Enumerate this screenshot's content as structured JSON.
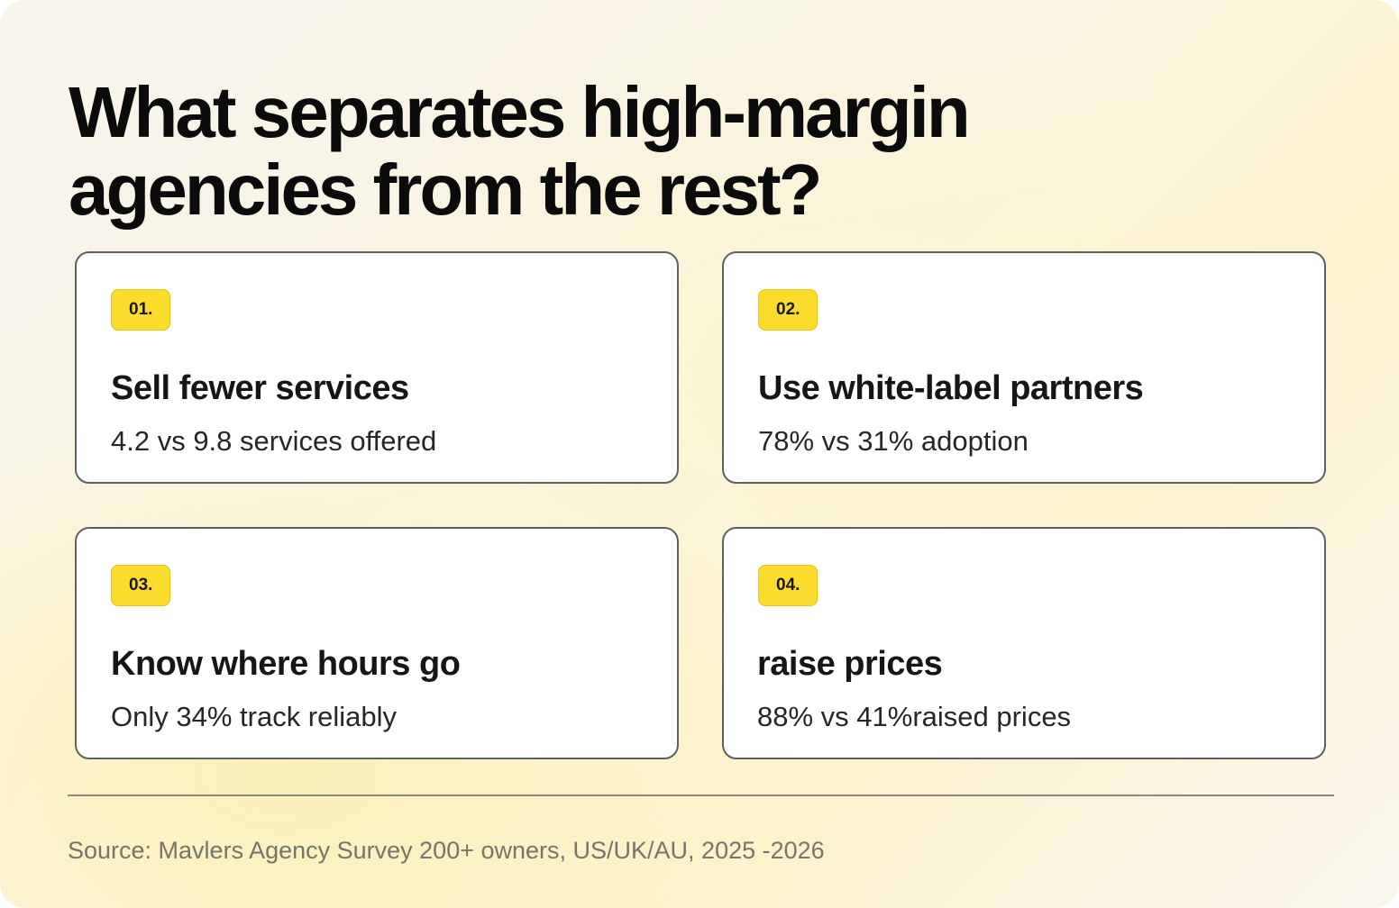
{
  "headline": {
    "line1": "What separates high-margin",
    "line2": "agencies from the rest?"
  },
  "cards": [
    {
      "badge": "01.",
      "title": "Sell fewer services",
      "subtitle": "4.2 vs 9.8 services offered"
    },
    {
      "badge": "02.",
      "title": "Use white-label partners",
      "subtitle": "78% vs 31% adoption"
    },
    {
      "badge": "03.",
      "title": "Know where hours go",
      "subtitle": "Only 34% track reliably"
    },
    {
      "badge": "04.",
      "title": "raise prices",
      "subtitle": "88% vs 41%raised prices"
    }
  ],
  "source": "Source: Mavlers Agency Survey 200+ owners, US/UK/AU, 2025 -2026",
  "colors": {
    "badge_fill": "#fbdc2c",
    "card_border": "#5f5f5f",
    "headline_text": "#0b0b0b",
    "source_text": "#77746c"
  }
}
